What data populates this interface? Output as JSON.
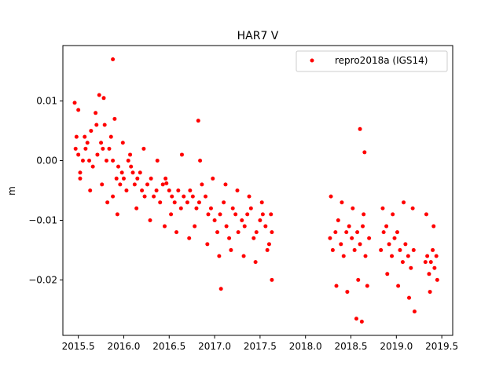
{
  "chart_data": {
    "type": "scatter",
    "title": "HAR7 V",
    "xlabel": "",
    "ylabel": "m",
    "xlim": [
      2015.33,
      2019.62
    ],
    "ylim": [
      -0.0293,
      0.0193
    ],
    "xticks": [
      2015.5,
      2016.0,
      2016.5,
      2017.0,
      2017.5,
      2018.0,
      2018.5,
      2019.0,
      2019.5
    ],
    "xtick_labels": [
      "2015.5",
      "2016.0",
      "2016.5",
      "2017.0",
      "2017.5",
      "2018.0",
      "2018.5",
      "2019.0",
      "2019.5"
    ],
    "yticks": [
      -0.02,
      -0.01,
      0.0,
      0.01
    ],
    "ytick_labels": [
      "−0.02",
      "−0.01",
      "0.00",
      "0.01"
    ],
    "grid": false,
    "legend_position": "top-right",
    "color": "#ff0000",
    "series": [
      {
        "name": "repro2018a (IGS14)",
        "x": [
          2015.46,
          2015.48,
          2015.5,
          2015.52,
          2015.55,
          2015.58,
          2015.6,
          2015.62,
          2015.64,
          2015.66,
          2015.69,
          2015.71,
          2015.73,
          2015.75,
          2015.77,
          2015.79,
          2015.81,
          2015.84,
          2015.86,
          2015.88,
          2015.9,
          2015.92,
          2015.94,
          2015.96,
          2015.98,
          2016.0,
          2016.03,
          2016.05,
          2016.08,
          2016.1,
          2016.12,
          2016.15,
          2016.18,
          2016.2,
          2016.23,
          2016.26,
          2016.3,
          2016.33,
          2016.36,
          2016.4,
          2016.43,
          2016.46,
          2016.5,
          2016.53,
          2016.56,
          2016.6,
          2016.63,
          2016.66,
          2016.7,
          2016.73,
          2016.76,
          2016.8,
          2016.83,
          2016.86,
          2016.9,
          2016.93,
          2016.96,
          2017.0,
          2017.03,
          2017.06,
          2017.1,
          2017.13,
          2017.16,
          2017.2,
          2017.23,
          2017.26,
          2017.3,
          2017.33,
          2017.36,
          2017.4,
          2017.43,
          2017.46,
          2017.5,
          2017.53,
          2017.56,
          2017.6,
          2017.63,
          2018.27,
          2018.3,
          2018.33,
          2018.36,
          2018.39,
          2018.42,
          2018.45,
          2018.48,
          2018.51,
          2018.54,
          2018.57,
          2018.6,
          2018.63,
          2018.66,
          2018.7,
          2018.83,
          2018.86,
          2018.89,
          2018.92,
          2018.95,
          2018.98,
          2019.01,
          2019.04,
          2019.07,
          2019.1,
          2019.13,
          2019.16,
          2019.19,
          2019.32,
          2019.34,
          2019.36,
          2019.38,
          2019.4,
          2019.42,
          2019.44,
          2015.47,
          2015.52,
          2015.57,
          2015.63,
          2015.7,
          2015.76,
          2015.82,
          2015.88,
          2015.93,
          2015.99,
          2016.07,
          2016.14,
          2016.22,
          2016.29,
          2016.37,
          2016.45,
          2016.52,
          2016.58,
          2016.64,
          2016.72,
          2016.78,
          2016.84,
          2016.92,
          2016.98,
          2017.05,
          2017.12,
          2017.18,
          2017.25,
          2017.32,
          2017.38,
          2017.45,
          2017.52,
          2017.58,
          2017.62,
          2018.28,
          2018.34,
          2018.4,
          2018.46,
          2018.52,
          2018.58,
          2018.64,
          2018.68,
          2018.85,
          2018.9,
          2018.96,
          2019.02,
          2019.08,
          2019.14,
          2019.18,
          2019.33,
          2019.37,
          2019.41,
          2019.45,
          2015.5,
          2015.78,
          2015.88,
          2016.47,
          2016.82,
          2017.07,
          2018.56,
          2018.6,
          2018.62,
          2018.65,
          2019.2,
          2017.63
        ],
        "y": [
          0.0097,
          0.004,
          0.001,
          -0.002,
          0.0,
          0.002,
          0.003,
          0.0,
          0.005,
          -0.001,
          0.008,
          0.001,
          0.011,
          0.003,
          0.002,
          0.006,
          0.0,
          0.002,
          0.004,
          0.0,
          0.007,
          -0.003,
          -0.001,
          -0.004,
          -0.002,
          -0.003,
          -0.005,
          0.0,
          -0.001,
          -0.002,
          -0.004,
          -0.003,
          -0.002,
          -0.005,
          -0.006,
          -0.004,
          -0.003,
          -0.006,
          -0.005,
          -0.007,
          -0.004,
          -0.003,
          -0.005,
          -0.006,
          -0.007,
          -0.005,
          -0.008,
          -0.006,
          -0.007,
          -0.005,
          -0.006,
          -0.008,
          -0.007,
          -0.004,
          -0.006,
          -0.009,
          -0.008,
          -0.01,
          -0.012,
          -0.009,
          -0.007,
          -0.011,
          -0.013,
          -0.008,
          -0.009,
          -0.012,
          -0.01,
          -0.011,
          -0.009,
          -0.008,
          -0.013,
          -0.012,
          -0.01,
          -0.009,
          -0.011,
          -0.014,
          -0.012,
          -0.013,
          -0.015,
          -0.012,
          -0.01,
          -0.014,
          -0.016,
          -0.012,
          -0.011,
          -0.013,
          -0.015,
          -0.012,
          -0.014,
          -0.011,
          -0.016,
          -0.013,
          -0.015,
          -0.012,
          -0.011,
          -0.014,
          -0.016,
          -0.013,
          -0.012,
          -0.015,
          -0.017,
          -0.014,
          -0.016,
          -0.018,
          -0.015,
          -0.017,
          -0.016,
          -0.019,
          -0.017,
          -0.015,
          -0.018,
          -0.016,
          0.002,
          -0.003,
          0.004,
          -0.005,
          0.006,
          -0.004,
          -0.007,
          -0.006,
          -0.009,
          0.003,
          0.001,
          -0.008,
          0.002,
          -0.01,
          0.0,
          -0.011,
          -0.009,
          -0.012,
          0.001,
          -0.013,
          -0.011,
          0.0,
          -0.014,
          -0.003,
          -0.016,
          -0.004,
          -0.015,
          -0.005,
          -0.016,
          -0.006,
          -0.017,
          -0.007,
          -0.015,
          -0.009,
          -0.006,
          -0.021,
          -0.007,
          -0.022,
          -0.008,
          -0.02,
          -0.009,
          -0.021,
          -0.008,
          -0.019,
          -0.009,
          -0.021,
          -0.007,
          -0.023,
          -0.008,
          -0.009,
          -0.022,
          -0.011,
          -0.02,
          0.0085,
          0.0105,
          0.017,
          -0.0038,
          0.0067,
          -0.0215,
          -0.0265,
          0.0053,
          -0.027,
          0.0014,
          -0.0253,
          -0.02
        ],
        "color": "#ff0000"
      }
    ]
  }
}
